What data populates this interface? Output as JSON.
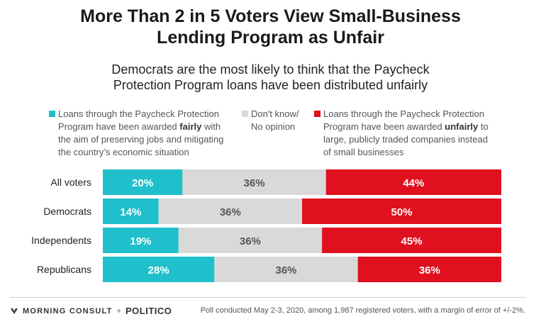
{
  "title_line1": "More Than 2 in 5 Voters View Small-Business",
  "title_line2": "Lending Program as Unfair",
  "subtitle_line1": "Democrats are the most likely to think that the Paycheck",
  "subtitle_line2": "Protection Program loans have been distributed unfairly",
  "legend": {
    "fair": {
      "color": "#1fc0cb",
      "line1": "Loans through the Paycheck Protection",
      "line2_pre": "Program have been awarded ",
      "line2_bold": "fairly",
      "line2_post": " with",
      "line3": "the aim of preserving jobs and mitigating",
      "line4": "the country’s economic situation"
    },
    "dk": {
      "color": "#d9d9d9",
      "line1": "Don't know/",
      "line2": "No opinion"
    },
    "unfair": {
      "color": "#e0101e",
      "line1": "Loans through the Paycheck Protection",
      "line2_pre": "Program have been awarded ",
      "line2_bold": "unfairly",
      "line2_post": " to",
      "line3": "large, publicly traded companies instead",
      "line4": "of small businesses"
    }
  },
  "chart_data": {
    "type": "bar",
    "orientation": "horizontal",
    "stacked": true,
    "categories": [
      "All voters",
      "Democrats",
      "Independents",
      "Republicans"
    ],
    "series": [
      {
        "name": "Loans through the Paycheck Protection Program have been awarded fairly with the aim of preserving jobs and mitigating the country’s economic situation",
        "color": "#1fc0cb",
        "label_color": "#ffffff",
        "values": [
          20,
          14,
          19,
          28
        ]
      },
      {
        "name": "Don't know/ No opinion",
        "color": "#d9d9d9",
        "label_color": "#555555",
        "values": [
          36,
          36,
          36,
          36
        ]
      },
      {
        "name": "Loans through the Paycheck Protection Program have been awarded unfairly to large, publicly traded companies instead of small businesses",
        "color": "#e0101e",
        "label_color": "#ffffff",
        "values": [
          44,
          50,
          45,
          36
        ]
      }
    ],
    "value_suffix": "%",
    "xlim": [
      0,
      100
    ],
    "grid": false,
    "legend_position": "top"
  },
  "footer": {
    "brand_left": "MORNING CONSULT",
    "brand_sep": "+",
    "brand_right": "POLITICO",
    "source": "Poll conducted May 2-3, 2020, among 1,987 registered voters, with a margin of error of +/-2%."
  }
}
